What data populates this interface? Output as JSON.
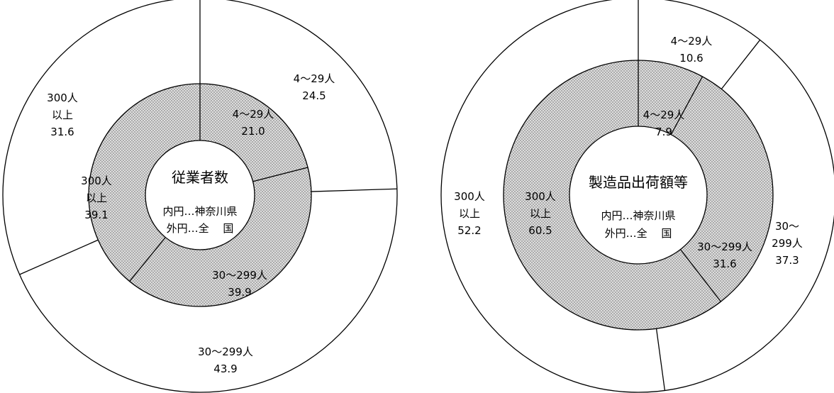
{
  "chart_data": [
    {
      "type": "pie",
      "title": "従業者数",
      "legend": {
        "inner": "内円…神奈川県",
        "outer": "外円…全　 国"
      },
      "inner": {
        "series_name": "神奈川県",
        "slices": [
          {
            "name_lines": [
              "4～29人"
            ],
            "value": 21.0,
            "value_text": "21.0"
          },
          {
            "name_lines": [
              "30～299人"
            ],
            "value": 39.9,
            "value_text": "39.9"
          },
          {
            "name_lines": [
              "300人",
              "以上"
            ],
            "value": 39.1,
            "value_text": "39.1"
          }
        ]
      },
      "outer": {
        "series_name": "全国",
        "slices": [
          {
            "name_lines": [
              "4～29人"
            ],
            "value": 24.5,
            "value_text": "24.5"
          },
          {
            "name_lines": [
              "30～299人"
            ],
            "value": 43.9,
            "value_text": "43.9"
          },
          {
            "name_lines": [
              "300人",
              "以上"
            ],
            "value": 31.6,
            "value_text": "31.6"
          }
        ]
      }
    },
    {
      "type": "pie",
      "title": "製造品出荷額等",
      "legend": {
        "inner": "内円…神奈川県",
        "outer": "外円…全　 国"
      },
      "inner": {
        "series_name": "神奈川県",
        "slices": [
          {
            "name_lines": [
              "4～29人"
            ],
            "value": 7.9,
            "value_text": "7.9"
          },
          {
            "name_lines": [
              "30～299人"
            ],
            "value": 31.6,
            "value_text": "31.6"
          },
          {
            "name_lines": [
              "300人",
              "以上"
            ],
            "value": 60.5,
            "value_text": "60.5"
          }
        ]
      },
      "outer": {
        "series_name": "全国",
        "slices": [
          {
            "name_lines": [
              "4～29人"
            ],
            "value": 10.6,
            "value_text": "10.6"
          },
          {
            "name_lines": [
              "30～",
              "299人"
            ],
            "value": 37.3,
            "value_text": "37.3"
          },
          {
            "name_lines": [
              "300人",
              "以上"
            ],
            "value": 52.2,
            "value_text": "52.2"
          }
        ]
      }
    }
  ]
}
